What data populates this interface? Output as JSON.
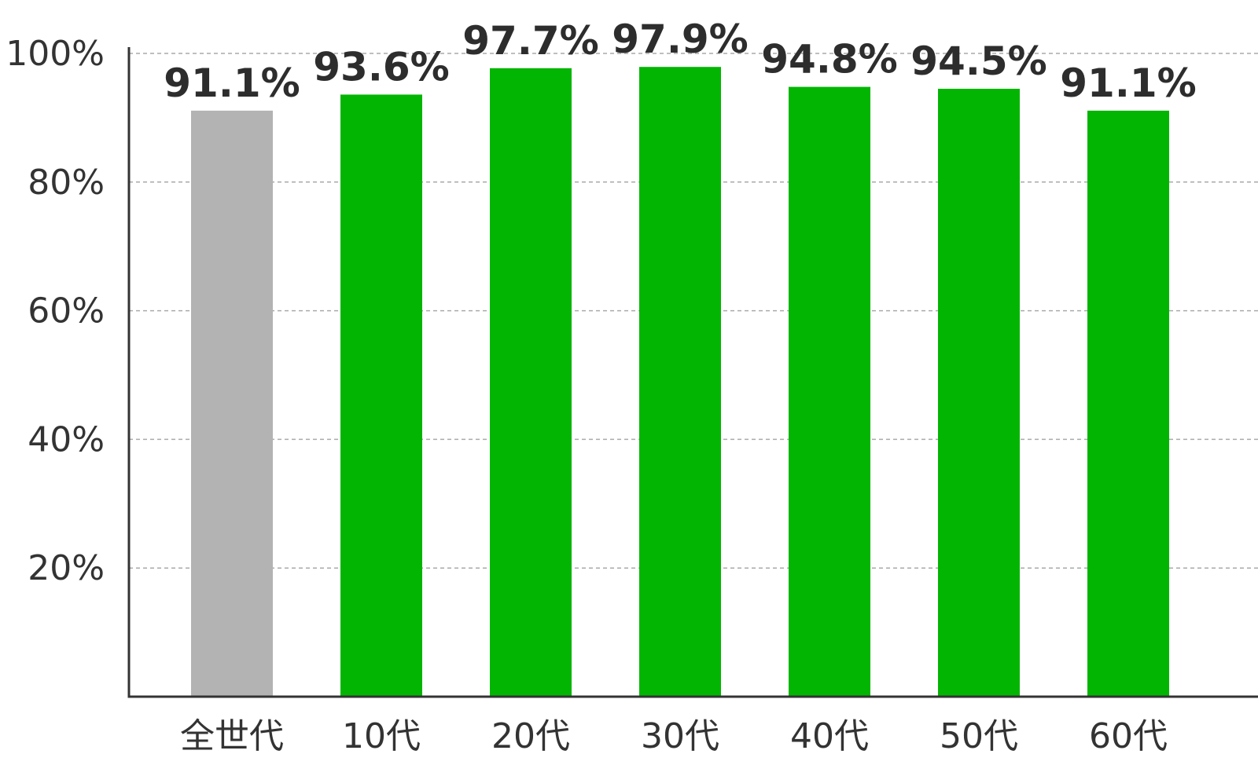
{
  "chart_data": {
    "type": "bar",
    "categories": [
      "全世代",
      "10代",
      "20代",
      "30代",
      "40代",
      "50代",
      "60代"
    ],
    "values": [
      91.1,
      93.6,
      97.7,
      97.9,
      94.8,
      94.5,
      91.1
    ],
    "data_labels": [
      "91.1%",
      "93.6%",
      "97.7%",
      "97.9%",
      "94.8%",
      "94.5%",
      "91.1%"
    ],
    "bar_colors": [
      "#b3b3b3",
      "#03b503",
      "#03b503",
      "#03b503",
      "#03b503",
      "#03b503",
      "#03b503"
    ],
    "y_ticks": [
      {
        "value": 20,
        "label": "20%"
      },
      {
        "value": 40,
        "label": "40%"
      },
      {
        "value": 60,
        "label": "60%"
      },
      {
        "value": 80,
        "label": "80%"
      },
      {
        "value": 100,
        "label": "100%"
      }
    ],
    "ylim": [
      0,
      100
    ],
    "grid": true,
    "title": "",
    "xlabel": "",
    "ylabel": "",
    "colors": {
      "axis": "#333333",
      "grid": "#aaaaaa",
      "text": "#333333",
      "label": "#2d2d2d"
    }
  }
}
